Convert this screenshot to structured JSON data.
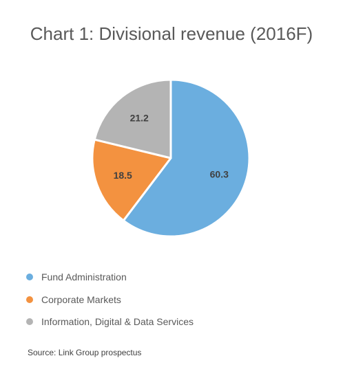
{
  "chart_data": {
    "type": "pie",
    "title": "Chart 1: Divisional revenue (2016F)",
    "categories": [
      "Fund Administration",
      "Corporate Markets",
      "Information, Digital & Data Services"
    ],
    "values": [
      60.3,
      18.5,
      21.2
    ],
    "colors": [
      "#6baedf",
      "#f39240",
      "#b4b4b4"
    ],
    "data_labels": [
      "60.3",
      "18.5",
      "21.2"
    ],
    "legend_position": "bottom-left",
    "source": "Source: Link Group prospectus"
  },
  "legend": {
    "items": [
      {
        "label": "Fund Administration",
        "color": "#6baedf"
      },
      {
        "label": "Corporate Markets",
        "color": "#f39240"
      },
      {
        "label": "Information, Digital & Data Services",
        "color": "#b4b4b4"
      }
    ]
  }
}
